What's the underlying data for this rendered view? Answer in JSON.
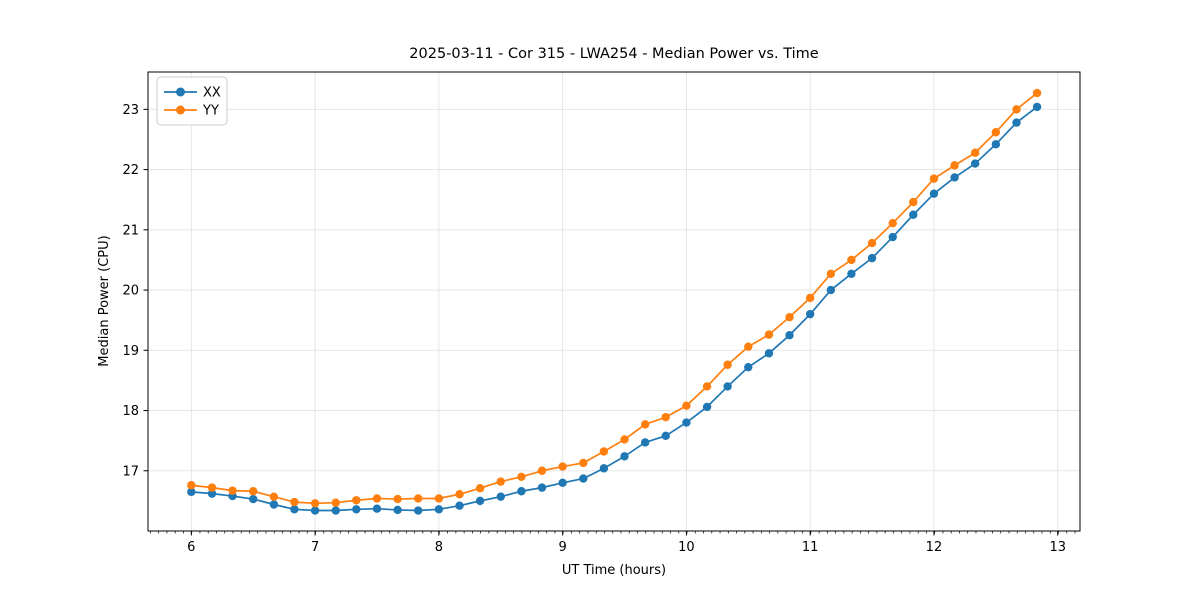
{
  "chart_data": {
    "type": "line",
    "title": "2025-03-11 - Cor 315 - LWA254 - Median Power vs. Time",
    "xlabel": "UT Time (hours)",
    "ylabel": "Median Power (CPU)",
    "x": [
      6.0,
      6.167,
      6.333,
      6.5,
      6.667,
      6.833,
      7.0,
      7.167,
      7.333,
      7.5,
      7.667,
      7.833,
      8.0,
      8.167,
      8.333,
      8.5,
      8.667,
      8.833,
      9.0,
      9.167,
      9.333,
      9.5,
      9.667,
      9.833,
      10.0,
      10.167,
      10.333,
      10.5,
      10.667,
      10.833,
      11.0,
      11.167,
      11.333,
      11.5,
      11.667,
      11.833,
      12.0,
      12.167,
      12.333,
      12.5,
      12.667,
      12.833
    ],
    "series": [
      {
        "name": "XX",
        "color": "#1f77b4",
        "values": [
          16.65,
          16.62,
          16.58,
          16.53,
          16.44,
          16.36,
          16.34,
          16.34,
          16.36,
          16.37,
          16.35,
          16.34,
          16.36,
          16.42,
          16.5,
          16.57,
          16.66,
          16.72,
          16.8,
          16.87,
          17.04,
          17.24,
          17.47,
          17.58,
          17.8,
          18.06,
          18.4,
          18.72,
          18.95,
          19.25,
          19.6,
          20.0,
          20.27,
          20.53,
          20.88,
          21.25,
          21.6,
          21.87,
          22.1,
          22.42,
          22.78,
          23.04
        ]
      },
      {
        "name": "YY",
        "color": "#ff7f0e",
        "values": [
          16.76,
          16.72,
          16.67,
          16.66,
          16.57,
          16.48,
          16.46,
          16.47,
          16.51,
          16.54,
          16.53,
          16.54,
          16.54,
          16.61,
          16.71,
          16.82,
          16.9,
          17.0,
          17.07,
          17.13,
          17.32,
          17.52,
          17.77,
          17.89,
          18.08,
          18.4,
          18.76,
          19.06,
          19.26,
          19.55,
          19.87,
          20.27,
          20.5,
          20.78,
          21.11,
          21.46,
          21.85,
          22.07,
          22.28,
          22.62,
          23.0,
          23.27
        ]
      }
    ],
    "xlim": [
      5.65,
      13.18
    ],
    "ylim": [
      16.0,
      23.62
    ],
    "xticks": [
      6,
      7,
      8,
      9,
      10,
      11,
      12,
      13
    ],
    "yticks": [
      17,
      18,
      19,
      20,
      21,
      22,
      23
    ],
    "x_minor_step": 0.0667,
    "grid": true,
    "grid_color": "#e3e3e3",
    "spine_color": "#000000",
    "legend_position": "upper left",
    "marker": "circle"
  }
}
